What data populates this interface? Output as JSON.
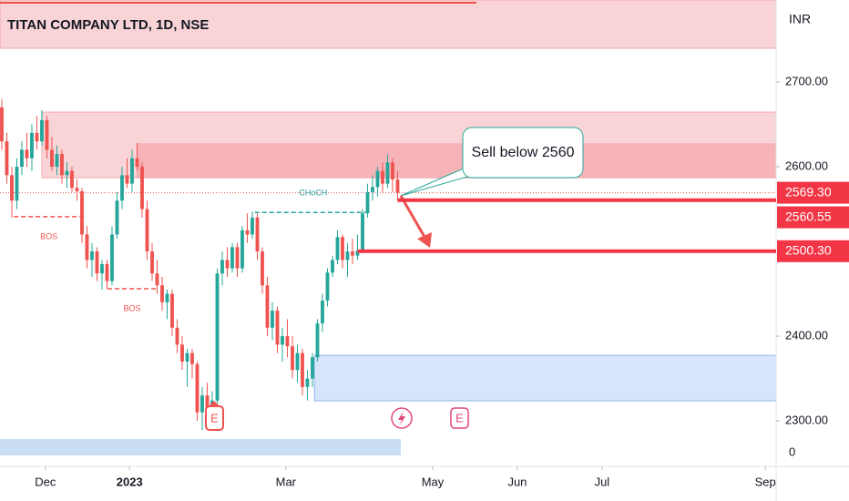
{
  "chart_data": {
    "type": "candlestick",
    "title": "TITAN COMPANY LTD, 1D, NSE",
    "currency": "INR",
    "volume_axis_label": "0",
    "up_color": "#26a69a",
    "down_color": "#ef5350",
    "ylim": [
      2253.8,
      2796.8
    ],
    "yticks": [
      {
        "value": 2300,
        "label": "2300.00"
      },
      {
        "value": 2400,
        "label": "2400.00"
      },
      {
        "value": 2600,
        "label": "2600.00"
      },
      {
        "value": 2700,
        "label": "2700.00"
      }
    ],
    "xlim": [
      -0.36,
      154.55
    ],
    "xticks": [
      {
        "value": 8.7,
        "label": "Dec"
      },
      {
        "value": 25.5,
        "label": "2023"
      },
      {
        "value": 56.7,
        "label": "Mar"
      },
      {
        "value": 86,
        "label": "May"
      },
      {
        "value": 102.9,
        "label": "Jun"
      },
      {
        "value": 119.8,
        "label": "Jul"
      },
      {
        "value": 152.4,
        "label": "Sep"
      }
    ],
    "candles": [
      [
        2670,
        2680,
        2620,
        2630
      ],
      [
        2630,
        2640,
        2580,
        2590
      ],
      [
        2590,
        2600,
        2540,
        2560
      ],
      [
        2560,
        2610,
        2550,
        2600
      ],
      [
        2600,
        2630,
        2590,
        2620
      ],
      [
        2620,
        2640,
        2600,
        2610
      ],
      [
        2610,
        2650,
        2595,
        2640
      ],
      [
        2640,
        2660,
        2620,
        2630
      ],
      [
        2630,
        2667,
        2625,
        2655
      ],
      [
        2655,
        2660,
        2610,
        2620
      ],
      [
        2620,
        2635,
        2595,
        2600
      ],
      [
        2600,
        2625,
        2590,
        2615
      ],
      [
        2615,
        2620,
        2580,
        2590
      ],
      [
        2590,
        2605,
        2575,
        2595
      ],
      [
        2595,
        2600,
        2570,
        2575
      ],
      [
        2575,
        2585,
        2560,
        2571
      ],
      [
        2571,
        2575,
        2510,
        2520
      ],
      [
        2520,
        2530,
        2480,
        2490
      ],
      [
        2490,
        2510,
        2470,
        2500
      ],
      [
        2500,
        2505,
        2465,
        2474
      ],
      [
        2474,
        2490,
        2455,
        2485
      ],
      [
        2485,
        2490,
        2456,
        2465
      ],
      [
        2465,
        2530,
        2460,
        2520
      ],
      [
        2520,
        2570,
        2515,
        2560
      ],
      [
        2560,
        2600,
        2550,
        2590
      ],
      [
        2590,
        2610,
        2575,
        2580
      ],
      [
        2580,
        2620,
        2570,
        2610
      ],
      [
        2610,
        2628,
        2595,
        2600
      ],
      [
        2600,
        2605,
        2540,
        2550
      ],
      [
        2550,
        2560,
        2490,
        2500
      ],
      [
        2500,
        2510,
        2465,
        2474
      ],
      [
        2474,
        2490,
        2450,
        2460
      ],
      [
        2460,
        2470,
        2430,
        2440
      ],
      [
        2440,
        2455,
        2420,
        2450
      ],
      [
        2450,
        2455,
        2400,
        2410
      ],
      [
        2410,
        2420,
        2380,
        2390
      ],
      [
        2390,
        2400,
        2360,
        2370
      ],
      [
        2370,
        2385,
        2340,
        2380
      ],
      [
        2380,
        2385,
        2350,
        2367
      ],
      [
        2367,
        2370,
        2300,
        2310
      ],
      [
        2310,
        2340,
        2289,
        2330
      ],
      [
        2330,
        2345,
        2310,
        2315
      ],
      [
        2315,
        2335,
        2300,
        2324
      ],
      [
        2324,
        2480,
        2320,
        2474
      ],
      [
        2474,
        2500,
        2460,
        2490
      ],
      [
        2490,
        2505,
        2470,
        2480
      ],
      [
        2480,
        2510,
        2475,
        2505
      ],
      [
        2505,
        2510,
        2470,
        2480
      ],
      [
        2480,
        2530,
        2475,
        2525
      ],
      [
        2525,
        2545,
        2510,
        2520
      ],
      [
        2520,
        2547,
        2515,
        2540
      ],
      [
        2540,
        2545,
        2490,
        2500
      ],
      [
        2500,
        2505,
        2450,
        2460
      ],
      [
        2460,
        2470,
        2400,
        2410
      ],
      [
        2410,
        2440,
        2395,
        2430
      ],
      [
        2430,
        2435,
        2380,
        2390
      ],
      [
        2390,
        2410,
        2370,
        2400
      ],
      [
        2400,
        2420,
        2375,
        2388
      ],
      [
        2388,
        2400,
        2350,
        2360
      ],
      [
        2360,
        2390,
        2345,
        2380
      ],
      [
        2380,
        2385,
        2330,
        2340
      ],
      [
        2340,
        2360,
        2324,
        2350
      ],
      [
        2350,
        2380,
        2340,
        2375
      ],
      [
        2375,
        2420,
        2370,
        2415
      ],
      [
        2415,
        2450,
        2405,
        2442
      ],
      [
        2442,
        2480,
        2435,
        2475
      ],
      [
        2475,
        2495,
        2470,
        2490
      ],
      [
        2490,
        2525,
        2485,
        2517
      ],
      [
        2517,
        2520,
        2480,
        2490
      ],
      [
        2490,
        2510,
        2470,
        2500
      ],
      [
        2500,
        2515,
        2485,
        2495
      ],
      [
        2495,
        2520,
        2490,
        2501
      ],
      [
        2501,
        2550,
        2498,
        2545
      ],
      [
        2545,
        2580,
        2540,
        2570
      ],
      [
        2570,
        2590,
        2560,
        2576
      ],
      [
        2576,
        2600,
        2565,
        2595
      ],
      [
        2595,
        2605,
        2570,
        2580
      ],
      [
        2580,
        2614,
        2575,
        2605
      ],
      [
        2605,
        2610,
        2570,
        2585
      ],
      [
        2585,
        2595,
        2560,
        2569.3
      ]
    ],
    "last_price": {
      "value": 2569.3,
      "label": "2569.30"
    },
    "zones": [
      {
        "from": 2739.8,
        "to": 2796.8,
        "start": -0.36,
        "color": "#f7c5c8"
      },
      {
        "from": 2587,
        "to": 2664.5,
        "start": 8,
        "color": "#f7c5c8"
      },
      {
        "from": 2587,
        "to": 2627,
        "start": 27,
        "color": "#f4a9ae"
      },
      {
        "from": 2323.7,
        "to": 2377.4,
        "start": 62.4,
        "color": "#c9dcf8"
      }
    ],
    "levels": [
      {
        "value": 2560.55,
        "label": "2560.55",
        "start": 79
      },
      {
        "value": 2500.3,
        "label": "2500.30",
        "start": 71
      }
    ],
    "structure": [
      {
        "label": "BOS",
        "level": 2541,
        "start": 2.4,
        "end": 16.4,
        "color": "#ef5350"
      },
      {
        "label": "BOS",
        "level": 2456,
        "start": 21.1,
        "end": 30.9,
        "color": "#ef5350"
      },
      {
        "label": "CHoCH",
        "level": 2546,
        "start": 50.5,
        "end": 73.8,
        "color": "#26a69a"
      }
    ],
    "callout": "Sell below 2560",
    "events": [
      "E",
      "E"
    ]
  }
}
